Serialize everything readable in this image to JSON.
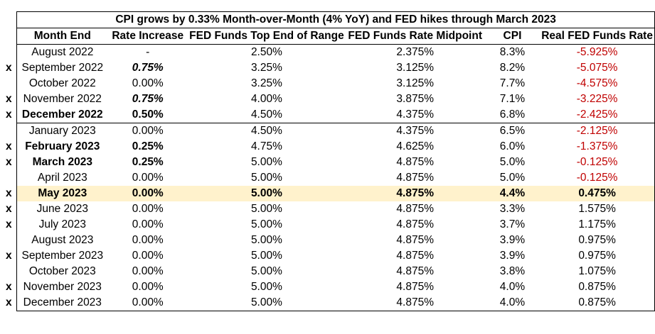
{
  "title": "CPI grows by 0.33% Month-over-Month (4% YoY) and FED hikes through March 2023",
  "headers": [
    "Month End",
    "Rate Increase",
    "FED Funds Top End of Range",
    "FED Funds Rate Midpoint",
    "CPI",
    "Real FED Funds Rate"
  ],
  "rows": [
    {
      "mark": "",
      "month": "August 2022",
      "rate_increase": "-",
      "top": "2.50%",
      "mid": "2.375%",
      "cpi": "8.3%",
      "real": "-5.925%",
      "real_negative": true
    },
    {
      "mark": "x",
      "month": "September 2022",
      "rate_increase": "0.75%",
      "rate_style": "bold-italic",
      "top": "3.25%",
      "mid": "3.125%",
      "cpi": "8.2%",
      "real": "-5.075%",
      "real_negative": true
    },
    {
      "mark": "",
      "month": "October 2022",
      "rate_increase": "0.00%",
      "top": "3.25%",
      "mid": "3.125%",
      "cpi": "7.7%",
      "real": "-4.575%",
      "real_negative": true
    },
    {
      "mark": "x",
      "month": "November 2022",
      "rate_increase": "0.75%",
      "rate_style": "bold-italic",
      "top": "4.00%",
      "mid": "3.875%",
      "cpi": "7.1%",
      "real": "-3.225%",
      "real_negative": true
    },
    {
      "mark": "x",
      "month": "December 2022",
      "month_bold": true,
      "rate_increase": "0.50%",
      "rate_style": "bold",
      "top": "4.50%",
      "mid": "4.375%",
      "cpi": "6.8%",
      "real": "-2.425%",
      "real_negative": true,
      "separator_below": true
    },
    {
      "mark": "",
      "month": "January 2023",
      "rate_increase": "0.00%",
      "top": "4.50%",
      "mid": "4.375%",
      "cpi": "6.5%",
      "real": "-2.125%",
      "real_negative": true
    },
    {
      "mark": "x",
      "month": "February 2023",
      "month_bold": true,
      "rate_increase": "0.25%",
      "rate_style": "bold",
      "top": "4.75%",
      "mid": "4.625%",
      "cpi": "6.0%",
      "real": "-1.375%",
      "real_negative": true
    },
    {
      "mark": "x",
      "month": "March 2023",
      "month_bold": true,
      "rate_increase": "0.25%",
      "rate_style": "bold",
      "top": "5.00%",
      "mid": "4.875%",
      "cpi": "5.0%",
      "real": "-0.125%",
      "real_negative": true
    },
    {
      "mark": "",
      "month": "April 2023",
      "rate_increase": "0.00%",
      "top": "5.00%",
      "mid": "4.875%",
      "cpi": "5.0%",
      "real": "-0.125%",
      "real_negative": true
    },
    {
      "mark": "x",
      "month": "May 2023",
      "highlight": true,
      "rate_increase": "0.00%",
      "top": "5.00%",
      "mid": "4.875%",
      "cpi": "4.4%",
      "real": "0.475%"
    },
    {
      "mark": "x",
      "month": "June 2023",
      "rate_increase": "0.00%",
      "top": "5.00%",
      "mid": "4.875%",
      "cpi": "3.3%",
      "real": "1.575%"
    },
    {
      "mark": "x",
      "month": "July 2023",
      "rate_increase": "0.00%",
      "top": "5.00%",
      "mid": "4.875%",
      "cpi": "3.7%",
      "real": "1.175%"
    },
    {
      "mark": "",
      "month": "August 2023",
      "rate_increase": "0.00%",
      "top": "5.00%",
      "mid": "4.875%",
      "cpi": "3.9%",
      "real": "0.975%"
    },
    {
      "mark": "x",
      "month": "September 2023",
      "rate_increase": "0.00%",
      "top": "5.00%",
      "mid": "4.875%",
      "cpi": "3.9%",
      "real": "0.975%"
    },
    {
      "mark": "",
      "month": "October 2023",
      "rate_increase": "0.00%",
      "top": "5.00%",
      "mid": "4.875%",
      "cpi": "3.8%",
      "real": "1.075%"
    },
    {
      "mark": "x",
      "month": "November 2023",
      "rate_increase": "0.00%",
      "top": "5.00%",
      "mid": "4.875%",
      "cpi": "4.0%",
      "real": "0.875%"
    },
    {
      "mark": "x",
      "month": "December 2023",
      "rate_increase": "0.00%",
      "top": "5.00%",
      "mid": "4.875%",
      "cpi": "4.0%",
      "real": "0.875%"
    }
  ],
  "colors": {
    "negative": "#c00000",
    "highlight": "#fff2cc"
  }
}
